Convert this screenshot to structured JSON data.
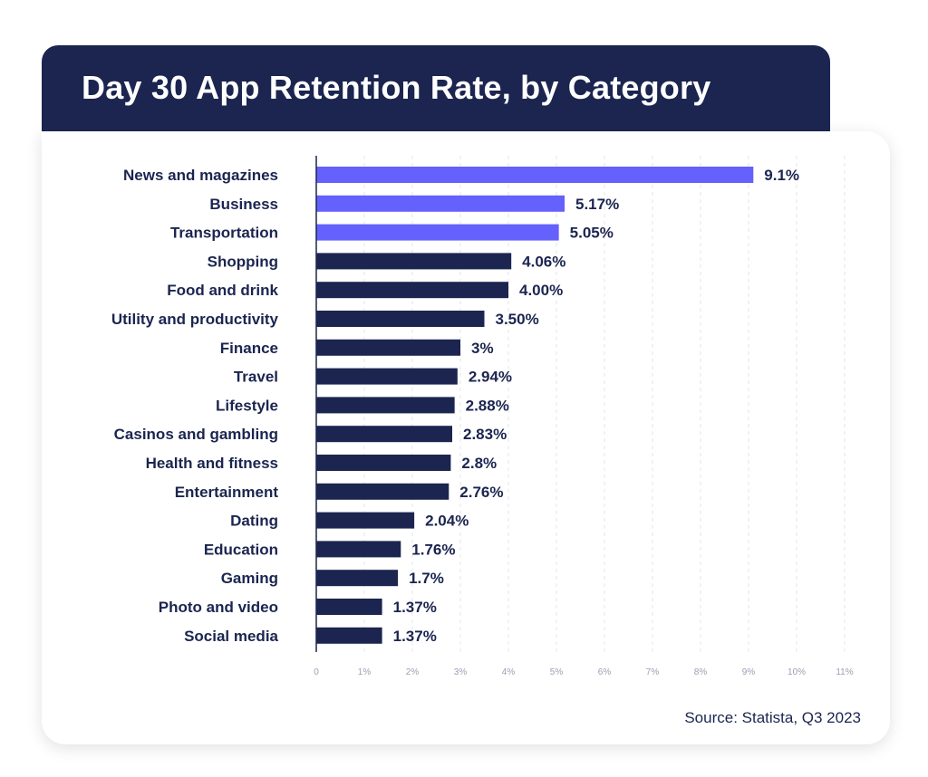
{
  "chart_data": {
    "type": "bar",
    "orientation": "horizontal",
    "title": "Day 30 App Retention Rate, by Category",
    "categories": [
      "News and magazines",
      "Business",
      "Transportation",
      "Shopping",
      "Food and drink",
      "Utility and productivity",
      "Finance",
      "Travel",
      "Lifestyle",
      "Casinos and gambling",
      "Health and fitness",
      "Entertainment",
      "Dating",
      "Education",
      "Gaming",
      "Photo and video",
      "Social media"
    ],
    "values": [
      9.1,
      5.17,
      5.05,
      4.06,
      4.0,
      3.5,
      3,
      2.94,
      2.88,
      2.83,
      2.8,
      2.76,
      2.04,
      1.76,
      1.7,
      1.37,
      1.37
    ],
    "value_labels": [
      "9.1%",
      "5.17%",
      "5.05%",
      "4.06%",
      "4.00%",
      "3.50%",
      "3%",
      "2.94%",
      "2.88%",
      "2.83%",
      "2.8%",
      "2.76%",
      "2.04%",
      "1.76%",
      "1.7%",
      "1.37%",
      "1.37%"
    ],
    "xlim": [
      0,
      11
    ],
    "x_ticks": [
      "0",
      "1%",
      "2%",
      "3%",
      "4%",
      "5%",
      "6%",
      "7%",
      "8%",
      "9%",
      "10%",
      "11%"
    ],
    "grid": "vertical dashed",
    "highlight_count": 3,
    "colors": {
      "highlight": "#6461fc",
      "default": "#1b2550",
      "header": "#1b2550",
      "tick": "#9aa0b4"
    },
    "source": "Source: Statista, Q3 2023"
  }
}
